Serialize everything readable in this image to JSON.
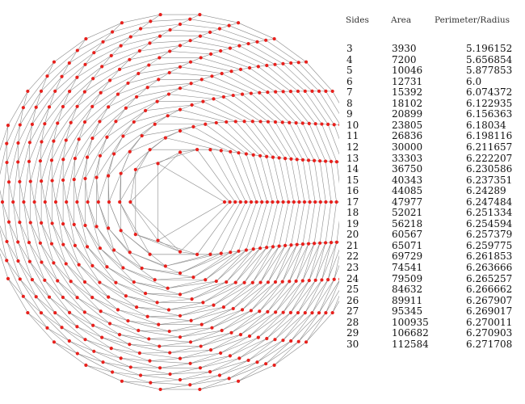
{
  "diagram": {
    "point_color": "#e8201c",
    "line_color": "#8c8c8c",
    "polygons_min_sides": 3,
    "polygons_max_sides": 30
  },
  "table": {
    "headers": {
      "sides": "Sides",
      "area": "Area",
      "ratio": "Perimeter/Radius"
    },
    "rows": [
      {
        "sides": "3",
        "area": "3930",
        "ratio": "5.196152"
      },
      {
        "sides": "4",
        "area": "7200",
        "ratio": "5.656854"
      },
      {
        "sides": "5",
        "area": "10046",
        "ratio": "5.877853"
      },
      {
        "sides": "6",
        "area": "12731",
        "ratio": "6.0"
      },
      {
        "sides": "7",
        "area": "15392",
        "ratio": "6.074372"
      },
      {
        "sides": "8",
        "area": "18102",
        "ratio": "6.122935"
      },
      {
        "sides": "9",
        "area": "20899",
        "ratio": "6.156363"
      },
      {
        "sides": "10",
        "area": "23805",
        "ratio": "6.18034"
      },
      {
        "sides": "11",
        "area": "26836",
        "ratio": "6.198116"
      },
      {
        "sides": "12",
        "area": "30000",
        "ratio": "6.211657"
      },
      {
        "sides": "13",
        "area": "33303",
        "ratio": "6.222207"
      },
      {
        "sides": "14",
        "area": "36750",
        "ratio": "6.230586"
      },
      {
        "sides": "15",
        "area": "40343",
        "ratio": "6.237351"
      },
      {
        "sides": "16",
        "area": "44085",
        "ratio": "6.24289"
      },
      {
        "sides": "17",
        "area": "47977",
        "ratio": "6.247484"
      },
      {
        "sides": "18",
        "area": "52021",
        "ratio": "6.251334"
      },
      {
        "sides": "19",
        "area": "56218",
        "ratio": "6.254594"
      },
      {
        "sides": "20",
        "area": "60567",
        "ratio": "6.257379"
      },
      {
        "sides": "21",
        "area": "65071",
        "ratio": "6.259775"
      },
      {
        "sides": "22",
        "area": "69729",
        "ratio": "6.261853"
      },
      {
        "sides": "23",
        "area": "74541",
        "ratio": "6.263666"
      },
      {
        "sides": "24",
        "area": "79509",
        "ratio": "6.265257"
      },
      {
        "sides": "25",
        "area": "84632",
        "ratio": "6.266662"
      },
      {
        "sides": "26",
        "area": "89911",
        "ratio": "6.267907"
      },
      {
        "sides": "27",
        "area": "95345",
        "ratio": "6.269017"
      },
      {
        "sides": "28",
        "area": "100935",
        "ratio": "6.270011"
      },
      {
        "sides": "29",
        "area": "106682",
        "ratio": "6.270903"
      },
      {
        "sides": "30",
        "area": "112584",
        "ratio": "6.271708"
      }
    ]
  }
}
